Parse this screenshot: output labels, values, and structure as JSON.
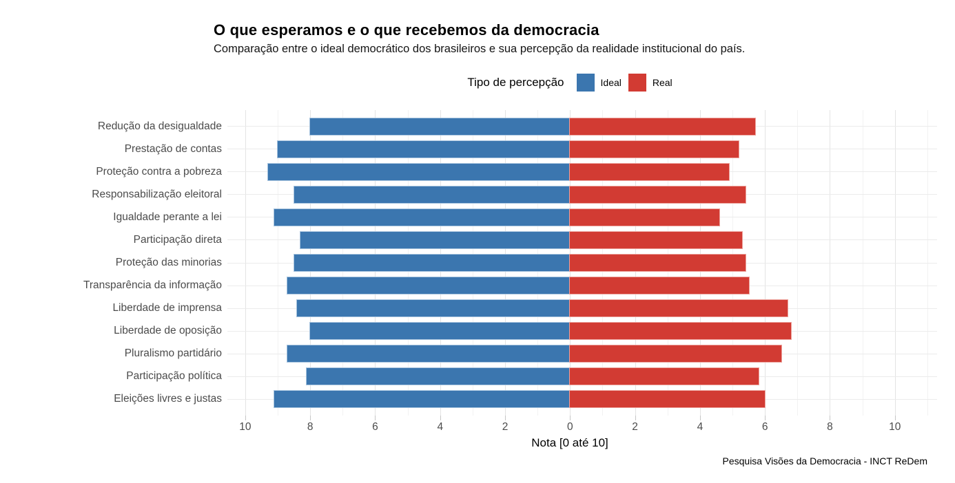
{
  "header": {
    "title": "O que esperamos e o que recebemos da democracia",
    "subtitle": "Comparação entre o ideal democrático dos brasileiros e sua percepção da realidade institucional do país."
  },
  "legend": {
    "title": "Tipo de percepção",
    "items": [
      {
        "label": "Ideal",
        "color": "#3B76AF",
        "edge_color": "#A9C5DF"
      },
      {
        "label": "Real",
        "color": "#D23B33",
        "edge_color": "#EDA49E"
      }
    ]
  },
  "chart_data": {
    "type": "bar",
    "variant": "diverging-horizontal",
    "title": "O que esperamos e o que recebemos da democracia",
    "subtitle": "Comparação entre o ideal democrático dos brasileiros e sua percepção da realidade institucional do país.",
    "categories": [
      "Redução da desigualdade",
      "Prestação de contas",
      "Proteção contra a pobreza",
      "Responsabilização eleitoral",
      "Igualdade perante a lei",
      "Participação direta",
      "Proteção das minorias",
      "Transparência da informação",
      "Liberdade de imprensa",
      "Liberdade de oposição",
      "Pluralismo partidário",
      "Participação política",
      "Eleições livres e justas"
    ],
    "series": [
      {
        "name": "Ideal",
        "side": "left",
        "color": "#3B76AF",
        "edge_color": "#A9C5DF",
        "values": [
          8.0,
          9.0,
          9.3,
          8.5,
          9.1,
          8.3,
          8.5,
          8.7,
          8.4,
          8.0,
          8.7,
          8.1,
          9.1
        ]
      },
      {
        "name": "Real",
        "side": "right",
        "color": "#D23B33",
        "edge_color": "#EDA49E",
        "values": [
          5.7,
          5.2,
          4.9,
          5.4,
          4.6,
          5.3,
          5.4,
          5.5,
          6.7,
          6.8,
          6.5,
          5.8,
          6.0
        ]
      }
    ],
    "xlabel": "Nota [0 até 10]",
    "x_tick_values": [
      -10,
      -8,
      -6,
      -4,
      -2,
      0,
      2,
      4,
      6,
      8,
      10
    ],
    "x_tick_labels": [
      "10",
      "8",
      "6",
      "4",
      "2",
      "0",
      "2",
      "4",
      "6",
      "8",
      "10"
    ],
    "xlim": [
      -10.55,
      11.3
    ],
    "grid": {
      "major_every_units": 2,
      "minor_every_units": 1,
      "horizontal_category_lines": true
    },
    "legend_position": "top",
    "legend_title": "Tipo de percepção"
  },
  "footer": {
    "caption": "Pesquisa Visões da Democracia - INCT ReDem"
  }
}
